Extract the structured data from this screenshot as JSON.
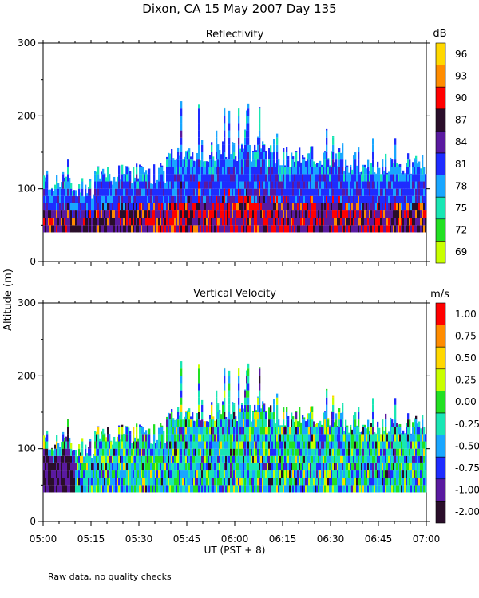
{
  "title": "Dixon, CA 15 May 2007  Day 135",
  "y_axis_label": "Altitude (m)",
  "x_axis_label": "UT  (PST + 8)",
  "footnote": "Raw data, no quality checks",
  "chart_data": [
    {
      "type": "heatmap",
      "title": "Reflectivity",
      "ylabel": "Altitude (m)",
      "xlabel": "UT  (PST + 8)",
      "x_range": [
        "05:00",
        "07:00"
      ],
      "x_ticks": [
        "05:00",
        "05:15",
        "05:30",
        "05:45",
        "06:00",
        "06:15",
        "06:30",
        "06:45",
        "07:00"
      ],
      "ylim": [
        0,
        300
      ],
      "y_ticks": [
        "0",
        "100",
        "200",
        "300"
      ],
      "colorbar": {
        "unit": "dB",
        "labels": [
          "96",
          "93",
          "90",
          "87",
          "84",
          "81",
          "78",
          "75",
          "72",
          "69"
        ],
        "colors": [
          "#ffd800",
          "#ff8c00",
          "#ff0000",
          "#2a0e2a",
          "#5a1aa0",
          "#1e2cff",
          "#19a6ff",
          "#19e6b4",
          "#22e022",
          "#c8ff00"
        ]
      }
    },
    {
      "type": "heatmap",
      "title": "Vertical Velocity",
      "ylabel": "Altitude (m)",
      "xlabel": "UT  (PST + 8)",
      "x_range": [
        "05:00",
        "07:00"
      ],
      "x_ticks": [
        "05:00",
        "05:15",
        "05:30",
        "05:45",
        "06:00",
        "06:15",
        "06:30",
        "06:45",
        "07:00"
      ],
      "ylim": [
        0,
        300
      ],
      "y_ticks": [
        "0",
        "100",
        "200",
        "300"
      ],
      "colorbar": {
        "unit": "m/s",
        "labels": [
          "1.00",
          "0.75",
          "0.50",
          "0.25",
          "0.00",
          "-0.25",
          "-0.50",
          "-0.75",
          "-1.00",
          "-2.00"
        ],
        "colors": [
          "#ff0000",
          "#ff8c00",
          "#ffd800",
          "#c8ff00",
          "#22e022",
          "#19e6b4",
          "#19a6ff",
          "#1e2cff",
          "#5a1aa0",
          "#2a0e2a"
        ]
      }
    }
  ]
}
